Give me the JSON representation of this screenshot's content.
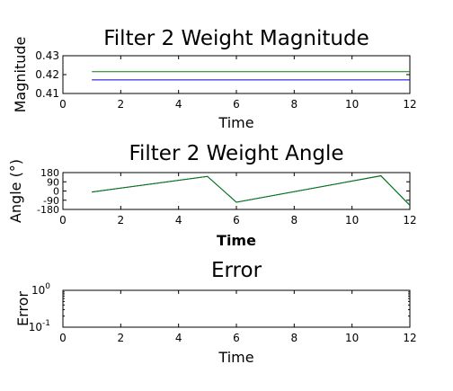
{
  "chart_data": [
    {
      "type": "line",
      "title": "Filter 2 Weight Magnitude",
      "xlabel": "Time",
      "ylabel": "Magnitude",
      "xlim": [
        0,
        12
      ],
      "ylim": [
        0.41,
        0.43
      ],
      "xticks": [
        0,
        2,
        4,
        6,
        8,
        10,
        12
      ],
      "xtick_labels": [
        "0",
        "2",
        "4",
        "6",
        "8",
        "10",
        "12"
      ],
      "yticks": [
        0.41,
        0.42,
        0.43
      ],
      "ytick_labels": [
        "0.41",
        "0.42",
        "0.43"
      ],
      "y_scale": "linear",
      "grid": false,
      "series": [
        {
          "color": "#008000",
          "x": [
            1,
            12
          ],
          "y": [
            0.4215,
            0.4215
          ]
        },
        {
          "color": "#0000cc",
          "x": [
            1,
            12
          ],
          "y": [
            0.4172,
            0.4172
          ]
        }
      ]
    },
    {
      "type": "line",
      "title": "Filter 2 Weight Angle",
      "xlabel": "Time",
      "ylabel": "Angle (°)",
      "xlim": [
        0,
        12
      ],
      "ylim": [
        -180,
        180
      ],
      "xticks": [
        0,
        2,
        4,
        6,
        8,
        10,
        12
      ],
      "xtick_labels": [
        "0",
        "2",
        "4",
        "6",
        "8",
        "10",
        "12"
      ],
      "yticks": [
        -180,
        -90,
        0,
        90,
        180
      ],
      "ytick_labels": [
        "-180",
        "-90",
        "0",
        "90",
        "180"
      ],
      "y_scale": "linear",
      "grid": false,
      "series": [
        {
          "color": "#0000cc",
          "x": [
            1,
            5,
            6,
            11,
            12
          ],
          "y": [
            -10,
            142,
            -110,
            148,
            -140
          ]
        },
        {
          "color": "#008000",
          "x": [
            1,
            5,
            6,
            11,
            12
          ],
          "y": [
            -10,
            142,
            -110,
            148,
            -140
          ]
        }
      ]
    },
    {
      "type": "line",
      "title": "Error",
      "xlabel": "Time",
      "ylabel": "Error",
      "xlim": [
        0,
        12
      ],
      "ylim": [
        0.1,
        1
      ],
      "xticks": [
        0,
        2,
        4,
        6,
        8,
        10,
        12
      ],
      "xtick_labels": [
        "0",
        "2",
        "4",
        "6",
        "8",
        "10",
        "12"
      ],
      "yticks": [
        0.1,
        1
      ],
      "ytick_labels": [
        {
          "base": "10",
          "exp": "-1"
        },
        {
          "base": "10",
          "exp": "0"
        }
      ],
      "y_scale": "log",
      "grid": false,
      "series": []
    }
  ]
}
